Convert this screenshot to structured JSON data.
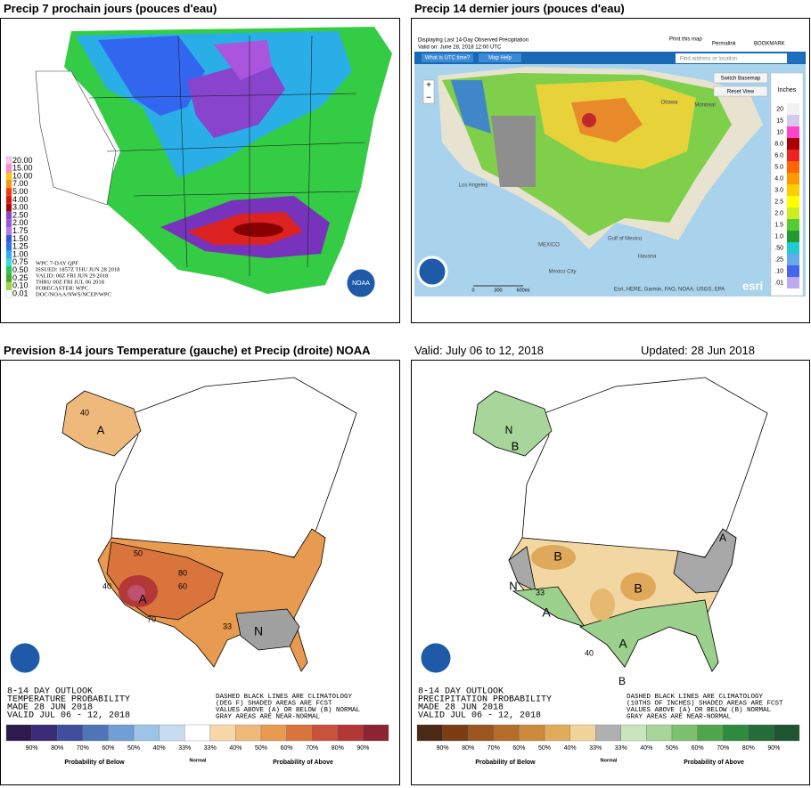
{
  "headings": {
    "qpf": "Precip 7 prochain jours (pouces d'eau)",
    "observed": "Precip 14 dernier jours (pouces d'eau)",
    "outlook": "Prevision 8-14 jours Temperature (gauche) et Precip (droite) NOAA",
    "valid": "Valid: July 06 to 12, 2018",
    "updated": "Updated: 28 Jun 2018"
  },
  "qpf": {
    "legend": [
      "20.00",
      "15.00",
      "10.00",
      "7.00",
      "5.00",
      "4.00",
      "3.00",
      "2.50",
      "2.00",
      "1.75",
      "1.50",
      "1.25",
      "1.00",
      "0.75",
      "0.50",
      "0.25",
      "0.10",
      "0.01"
    ],
    "caption": [
      "WPC 7-DAY QPF",
      "ISSUED: 1857Z THU JUN 28 2018",
      "VALID: 00Z FRI JUN 29 2018",
      "THRU 00Z FRI JUL 06 2018",
      "FORECASTER: WPC",
      "DOC/NOAA/NWS/NCEP/WPC"
    ]
  },
  "observed": {
    "info": [
      "Displaying Last 14-Day Observed Precipitation",
      "Valid on: June 28, 2018 12:00 UTC"
    ],
    "print": "Print this map",
    "permalink": "Permalink",
    "bookmark": "BOOKMARK",
    "utc": "What is UTC time?",
    "help": "Map Help",
    "search": "Find address or location",
    "basemap": "Switch Basemap",
    "reset": "Reset View",
    "units": "Inches",
    "legend": [
      "20",
      "15",
      "10",
      "8.0",
      "6.0",
      "5.0",
      "4.0",
      "3.0",
      "2.5",
      "2.0",
      "1.5",
      "1.0",
      ".50",
      ".25",
      ".10",
      ".01"
    ],
    "places": [
      "Ottawa",
      "Montreal",
      "Los Angeles",
      "MEXICO",
      "Gulf of Mexico",
      "Havana",
      "Mexico City"
    ],
    "scale": [
      "0",
      "300",
      "600mi"
    ],
    "attribution": "Esri, HERE, Garmin, FAO, NOAA, USGS, EPA",
    "esri": "esri"
  },
  "temperature": {
    "caption": [
      "8-14 DAY OUTLOOK",
      "TEMPERATURE PROBABILITY",
      "MADE  28 JUN 2018",
      "VALID  JUL 06 - 12, 2018"
    ],
    "notes": [
      "DASHED BLACK LINES ARE CLIMATOLOGY",
      "(DEG F) SHADED AREAS ARE FCST",
      "VALUES ABOVE (A) OR BELOW (B) NORMAL",
      "GRAY AREAS ARE NEAR-NORMAL"
    ],
    "scale": [
      "90%",
      "80%",
      "70%",
      "60%",
      "50%",
      "40%",
      "33%",
      "33%",
      "40%",
      "50%",
      "60%",
      "70%",
      "80%",
      "90%"
    ],
    "below": "Probability of Below",
    "normal": "Normal",
    "above": "Probability of Above",
    "map_labels": [
      "A",
      "N",
      "A",
      "50",
      "60",
      "70",
      "80",
      "40",
      "33",
      "40"
    ]
  },
  "precipitation": {
    "caption": [
      "8-14 DAY OUTLOOK",
      "PRECIPITATION PROBABILITY",
      "MADE  28 JUN 2018",
      "VALID  JUL 06 - 12, 2018"
    ],
    "notes": [
      "DASHED BLACK LINES ARE CLIMATOLOGY",
      "(10THS OF INCHES) SHADED AREAS ARE FCST",
      "VALUES ABOVE (A) OR BELOW (B) NORMAL",
      "GRAY AREAS ARE NEAR-NORMAL"
    ],
    "scale": [
      "90%",
      "80%",
      "70%",
      "60%",
      "50%",
      "40%",
      "33%",
      "33%",
      "40%",
      "50%",
      "60%",
      "70%",
      "80%",
      "90%"
    ],
    "below": "Probability of Below",
    "normal": "Normal",
    "above": "Probability of Above",
    "map_labels": [
      "B",
      "B",
      "B",
      "N",
      "A",
      "A",
      "A",
      "B",
      "N",
      "40",
      "33"
    ]
  }
}
